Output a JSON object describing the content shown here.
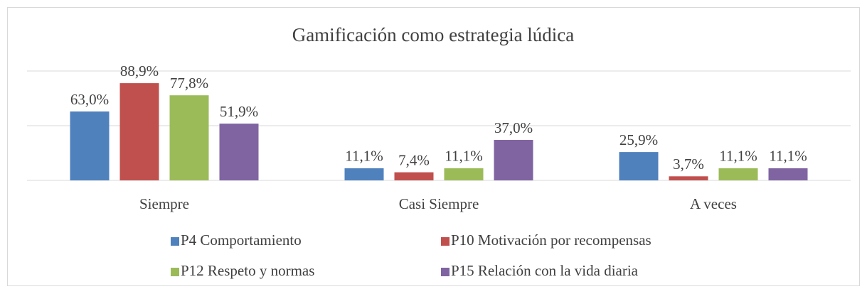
{
  "chart_data": {
    "type": "bar",
    "title": "Gamificación como estrategia lúdica",
    "categories": [
      "Siempre",
      "Casi Siempre",
      "A veces"
    ],
    "series": [
      {
        "name": "P4 Comportamiento",
        "color": "#4f81bd",
        "values": [
          63.0,
          11.1,
          25.9
        ],
        "value_labels": [
          "63,0%",
          "11,1%",
          "25,9%"
        ]
      },
      {
        "name": "P10 Motivación por recompensas",
        "color": "#c0504d",
        "values": [
          88.9,
          7.4,
          3.7
        ],
        "value_labels": [
          "88,9%",
          "7,4%",
          "3,7%"
        ]
      },
      {
        "name": "P12 Respeto y normas",
        "color": "#9bbb59",
        "values": [
          77.8,
          11.1,
          11.1
        ],
        "value_labels": [
          "77,8%",
          "11,1%",
          "11,1%"
        ]
      },
      {
        "name": "P15 Relación con la vida diaria",
        "color": "#8064a2",
        "values": [
          51.9,
          37.0,
          11.1
        ],
        "value_labels": [
          "51,9%",
          "37,0%",
          "11,1%"
        ]
      }
    ],
    "ylim": [
      0,
      100
    ],
    "yticks": [
      0,
      50,
      100
    ],
    "grid": true,
    "legend": "bottom"
  }
}
